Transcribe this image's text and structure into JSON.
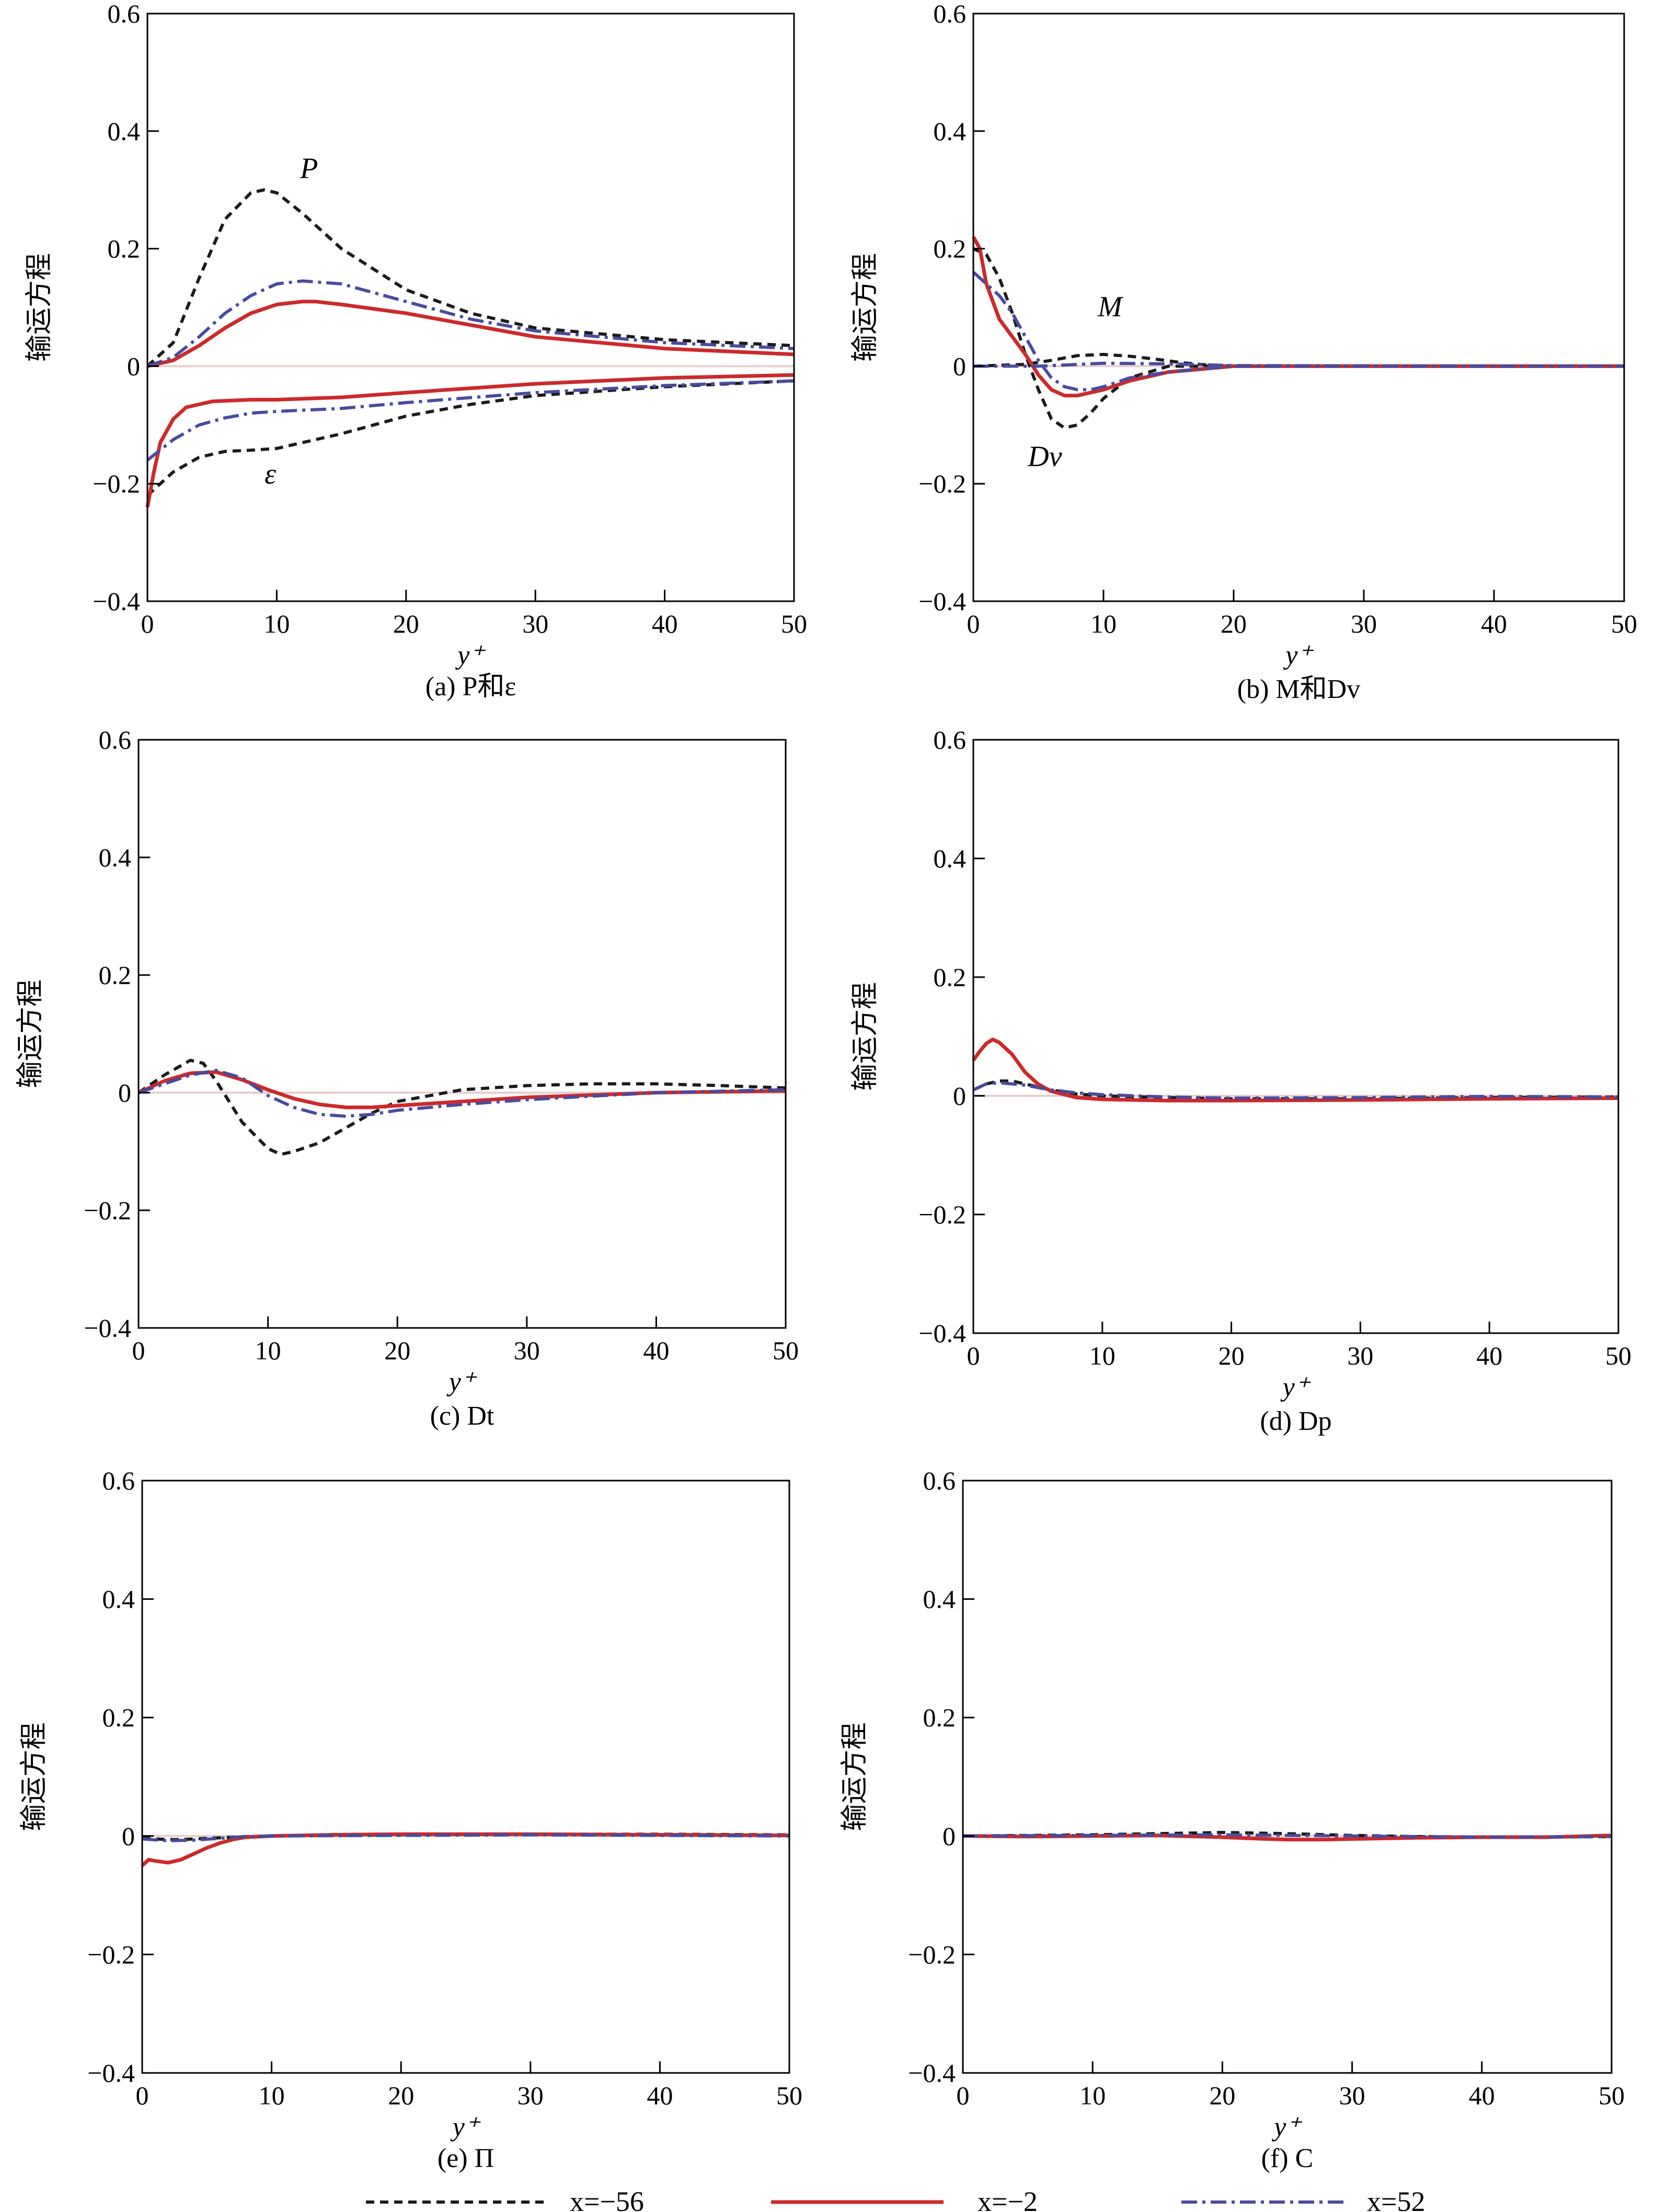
{
  "colors": {
    "x_neg56": "#1a1a1a",
    "x_neg2": "#cc2a2a",
    "x_52": "#4a4aa0",
    "zero_line": "#e6cfcf"
  },
  "legend": [
    {
      "label": "x=−56",
      "style": "dashed",
      "color_key": "x_neg56"
    },
    {
      "label": "x=−2",
      "style": "solid",
      "color_key": "x_neg2"
    },
    {
      "label": "x=52",
      "style": "dashdot",
      "color_key": "x_52"
    }
  ],
  "chart_data": [
    {
      "id": "a",
      "type": "line",
      "caption": "(a) P和ε",
      "xlabel": "y⁺",
      "ylabel": "输运方程",
      "xlim": [
        0,
        50
      ],
      "ylim": [
        -0.4,
        0.6
      ],
      "xticks": [
        "0",
        "10",
        "20",
        "30",
        "40",
        "50"
      ],
      "yticks": [
        "−0.4",
        "−0.2",
        "0",
        "0.2",
        "0.4",
        "0.6"
      ],
      "annotations": [
        {
          "text": "P",
          "x": 12.5,
          "y": 0.32
        },
        {
          "text": "ε",
          "x": 9.5,
          "y": -0.2
        }
      ],
      "series": [
        {
          "name": "x=−56 P",
          "legend": 0,
          "x": [
            0,
            2,
            4,
            6,
            8,
            9,
            10,
            12,
            15,
            20,
            25,
            30,
            40,
            50
          ],
          "y": [
            0,
            0.04,
            0.15,
            0.25,
            0.295,
            0.3,
            0.295,
            0.26,
            0.2,
            0.13,
            0.09,
            0.065,
            0.045,
            0.035
          ]
        },
        {
          "name": "x=−2 P",
          "legend": 1,
          "x": [
            0,
            2,
            4,
            6,
            8,
            10,
            12,
            13,
            15,
            20,
            25,
            30,
            40,
            50
          ],
          "y": [
            0,
            0.01,
            0.035,
            0.065,
            0.09,
            0.105,
            0.11,
            0.11,
            0.105,
            0.09,
            0.07,
            0.05,
            0.03,
            0.02
          ]
        },
        {
          "name": "x=52 P",
          "legend": 2,
          "x": [
            0,
            2,
            4,
            6,
            8,
            10,
            12,
            15,
            20,
            25,
            30,
            40,
            50
          ],
          "y": [
            0,
            0.015,
            0.05,
            0.09,
            0.12,
            0.14,
            0.145,
            0.14,
            0.11,
            0.08,
            0.06,
            0.04,
            0.03
          ]
        },
        {
          "name": "x=−56 ε",
          "legend": 0,
          "x": [
            0,
            2,
            4,
            6,
            8,
            10,
            12,
            15,
            20,
            25,
            30,
            40,
            50
          ],
          "y": [
            -0.22,
            -0.18,
            -0.155,
            -0.145,
            -0.143,
            -0.14,
            -0.13,
            -0.115,
            -0.085,
            -0.065,
            -0.05,
            -0.035,
            -0.025
          ]
        },
        {
          "name": "x=−2 ε",
          "legend": 1,
          "x": [
            0,
            0.5,
            1,
            2,
            3,
            5,
            8,
            10,
            15,
            20,
            30,
            40,
            50
          ],
          "y": [
            -0.24,
            -0.18,
            -0.13,
            -0.09,
            -0.07,
            -0.06,
            -0.057,
            -0.057,
            -0.053,
            -0.045,
            -0.03,
            -0.02,
            -0.015
          ]
        },
        {
          "name": "x=52 ε",
          "legend": 2,
          "x": [
            0,
            2,
            4,
            6,
            8,
            10,
            15,
            20,
            30,
            40,
            50
          ],
          "y": [
            -0.16,
            -0.125,
            -0.1,
            -0.088,
            -0.08,
            -0.077,
            -0.072,
            -0.062,
            -0.045,
            -0.033,
            -0.025
          ]
        }
      ]
    },
    {
      "id": "b",
      "type": "line",
      "caption": "(b) M和Dv",
      "xlabel": "y⁺",
      "ylabel": "输运方程",
      "xlim": [
        0,
        50
      ],
      "ylim": [
        -0.4,
        0.6
      ],
      "xticks": [
        "0",
        "10",
        "20",
        "30",
        "40",
        "50"
      ],
      "yticks": [
        "−0.4",
        "−0.2",
        "0",
        "0.2",
        "0.4",
        "0.6"
      ],
      "annotations": [
        {
          "text": "M",
          "x": 10.5,
          "y": 0.085
        },
        {
          "text": "Dv",
          "x": 5.5,
          "y": -0.17
        }
      ],
      "series": [
        {
          "name": "x=−56 Dv",
          "legend": 0,
          "x": [
            0,
            1,
            2,
            3,
            4,
            5,
            6,
            7,
            8,
            9,
            10,
            12,
            15,
            20,
            50
          ],
          "y": [
            0.2,
            0.19,
            0.15,
            0.09,
            0.02,
            -0.04,
            -0.09,
            -0.105,
            -0.1,
            -0.08,
            -0.055,
            -0.02,
            0,
            0,
            0
          ]
        },
        {
          "name": "x=−56 M",
          "legend": 0,
          "x": [
            0,
            4,
            6,
            8,
            10,
            12,
            14,
            16,
            18,
            20,
            50
          ],
          "y": [
            0,
            0.003,
            0.01,
            0.018,
            0.02,
            0.017,
            0.012,
            0.006,
            0.002,
            0,
            0
          ]
        },
        {
          "name": "x=−2 Dv",
          "legend": 1,
          "x": [
            0,
            0.5,
            1,
            2,
            3,
            4,
            5,
            6,
            7,
            8,
            9,
            10,
            12,
            15,
            20,
            50
          ],
          "y": [
            0.22,
            0.2,
            0.14,
            0.08,
            0.05,
            0.02,
            -0.015,
            -0.04,
            -0.05,
            -0.05,
            -0.045,
            -0.04,
            -0.025,
            -0.01,
            0,
            0
          ]
        },
        {
          "name": "x=52 Dv",
          "legend": 2,
          "x": [
            0,
            1,
            2,
            3,
            4,
            5,
            6,
            7,
            8,
            9,
            10,
            12,
            15,
            20,
            50
          ],
          "y": [
            0.16,
            0.14,
            0.12,
            0.09,
            0.05,
            0.01,
            -0.02,
            -0.035,
            -0.04,
            -0.04,
            -0.035,
            -0.02,
            -0.01,
            0,
            0
          ]
        },
        {
          "name": "x=52 M",
          "legend": 2,
          "x": [
            0,
            5,
            10,
            15,
            20,
            50
          ],
          "y": [
            0,
            0,
            0.005,
            0.004,
            0.001,
            0
          ]
        }
      ]
    },
    {
      "id": "c",
      "type": "line",
      "caption": "(c) Dt",
      "xlabel": "y⁺",
      "ylabel": "输运方程",
      "xlim": [
        0,
        50
      ],
      "ylim": [
        -0.4,
        0.6
      ],
      "xticks": [
        "0",
        "10",
        "20",
        "30",
        "40",
        "50"
      ],
      "yticks": [
        "−0.4",
        "−0.2",
        "0",
        "0.2",
        "0.4",
        "0.6"
      ],
      "annotations": [],
      "series": [
        {
          "name": "x=−56",
          "legend": 0,
          "x": [
            0,
            2,
            4,
            5,
            6,
            8,
            10,
            11,
            12,
            14,
            16,
            18,
            20,
            25,
            30,
            35,
            40,
            45,
            50
          ],
          "y": [
            0,
            0.03,
            0.055,
            0.05,
            0.02,
            -0.05,
            -0.095,
            -0.105,
            -0.1,
            -0.085,
            -0.06,
            -0.035,
            -0.015,
            0.005,
            0.012,
            0.015,
            0.015,
            0.012,
            0.008
          ]
        },
        {
          "name": "x=−2",
          "legend": 1,
          "x": [
            0,
            2,
            4,
            6,
            8,
            10,
            12,
            14,
            16,
            18,
            20,
            25,
            30,
            40,
            50
          ],
          "y": [
            0,
            0.02,
            0.033,
            0.035,
            0.022,
            0.005,
            -0.01,
            -0.02,
            -0.025,
            -0.025,
            -0.022,
            -0.015,
            -0.008,
            0,
            0.003
          ]
        },
        {
          "name": "x=52",
          "legend": 2,
          "x": [
            0,
            2,
            4,
            6,
            8,
            10,
            12,
            14,
            16,
            18,
            20,
            25,
            30,
            40,
            50
          ],
          "y": [
            0,
            0.015,
            0.03,
            0.038,
            0.025,
            -0.005,
            -0.025,
            -0.037,
            -0.04,
            -0.037,
            -0.03,
            -0.02,
            -0.012,
            0,
            0.005
          ]
        }
      ]
    },
    {
      "id": "d",
      "type": "line",
      "caption": "(d) Dp",
      "xlabel": "y⁺",
      "ylabel": "输运方程",
      "xlim": [
        0,
        50
      ],
      "ylim": [
        -0.4,
        0.6
      ],
      "xticks": [
        "0",
        "10",
        "20",
        "30",
        "40",
        "50"
      ],
      "yticks": [
        "−0.4",
        "−0.2",
        "0",
        "0.2",
        "0.4",
        "0.6"
      ],
      "annotations": [],
      "series": [
        {
          "name": "x=−56",
          "legend": 0,
          "x": [
            0,
            1,
            2,
            3,
            4,
            5,
            6,
            8,
            10,
            15,
            20,
            30,
            40,
            50
          ],
          "y": [
            0.01,
            0.02,
            0.025,
            0.025,
            0.02,
            0.015,
            0.01,
            0.003,
            0,
            -0.003,
            -0.005,
            -0.005,
            -0.003,
            -0.002
          ]
        },
        {
          "name": "x=−2",
          "legend": 1,
          "x": [
            0,
            0.5,
            1,
            1.5,
            2,
            3,
            4,
            5,
            6,
            8,
            10,
            15,
            20,
            30,
            40,
            50
          ],
          "y": [
            0.06,
            0.075,
            0.088,
            0.095,
            0.09,
            0.07,
            0.04,
            0.02,
            0.008,
            -0.003,
            -0.006,
            -0.008,
            -0.008,
            -0.007,
            -0.005,
            -0.004
          ]
        },
        {
          "name": "x=52",
          "legend": 2,
          "x": [
            0,
            1,
            2,
            3,
            4,
            6,
            8,
            10,
            15,
            20,
            30,
            40,
            50
          ],
          "y": [
            0.01,
            0.02,
            0.022,
            0.02,
            0.018,
            0.01,
            0.005,
            0.002,
            -0.002,
            -0.004,
            -0.003,
            -0.001,
            -0.002
          ]
        }
      ]
    },
    {
      "id": "e",
      "type": "line",
      "caption": "(e) Π",
      "xlabel": "y⁺",
      "ylabel": "输运方程",
      "xlim": [
        0,
        50
      ],
      "ylim": [
        -0.4,
        0.6
      ],
      "xticks": [
        "0",
        "10",
        "20",
        "30",
        "40",
        "50"
      ],
      "yticks": [
        "−0.4",
        "−0.2",
        "0",
        "0.2",
        "0.4",
        "0.6"
      ],
      "annotations": [],
      "series": [
        {
          "name": "x=−56",
          "legend": 0,
          "x": [
            0,
            1,
            2,
            3,
            4,
            6,
            8,
            10,
            20,
            30,
            40,
            50
          ],
          "y": [
            -0.003,
            -0.005,
            -0.006,
            -0.006,
            -0.005,
            -0.003,
            -0.001,
            0,
            0.002,
            0.003,
            0.003,
            0.002
          ]
        },
        {
          "name": "x=−2",
          "legend": 1,
          "x": [
            0,
            0.5,
            1,
            2,
            3,
            4,
            5,
            6,
            7,
            8,
            10,
            15,
            20,
            30,
            40,
            50
          ],
          "y": [
            -0.05,
            -0.04,
            -0.042,
            -0.045,
            -0.04,
            -0.03,
            -0.02,
            -0.012,
            -0.006,
            -0.002,
            0,
            0.002,
            0.003,
            0.003,
            0.002,
            0.001
          ]
        },
        {
          "name": "x=52",
          "legend": 2,
          "x": [
            0,
            2,
            4,
            6,
            8,
            10,
            20,
            30,
            40,
            50
          ],
          "y": [
            -0.005,
            -0.008,
            -0.007,
            -0.004,
            -0.001,
            0,
            0.001,
            0.002,
            0.001,
            0
          ]
        }
      ]
    },
    {
      "id": "f",
      "type": "line",
      "caption": "(f) C",
      "xlabel": "y⁺",
      "ylabel": "输运方程",
      "xlim": [
        0,
        50
      ],
      "ylim": [
        -0.4,
        0.6
      ],
      "xticks": [
        "0",
        "10",
        "20",
        "30",
        "40",
        "50"
      ],
      "yticks": [
        "−0.4",
        "−0.2",
        "0",
        "0.2",
        "0.4",
        "0.6"
      ],
      "annotations": [],
      "series": [
        {
          "name": "x=−56",
          "legend": 0,
          "x": [
            0,
            5,
            10,
            15,
            20,
            25,
            30,
            35,
            40,
            45,
            50
          ],
          "y": [
            0,
            0.001,
            0.002,
            0.004,
            0.006,
            0.004,
            0.001,
            -0.001,
            -0.002,
            -0.002,
            -0.001
          ]
        },
        {
          "name": "x=−2",
          "legend": 1,
          "x": [
            0,
            5,
            10,
            15,
            20,
            22,
            25,
            28,
            30,
            35,
            40,
            45,
            50
          ],
          "y": [
            0,
            -0.001,
            0,
            0.001,
            -0.002,
            -0.004,
            -0.006,
            -0.006,
            -0.005,
            -0.003,
            -0.002,
            -0.002,
            0.001
          ]
        },
        {
          "name": "x=52",
          "legend": 2,
          "x": [
            0,
            10,
            20,
            30,
            40,
            50
          ],
          "y": [
            0,
            0.001,
            0.002,
            0,
            -0.002,
            -0.001
          ]
        }
      ]
    }
  ]
}
